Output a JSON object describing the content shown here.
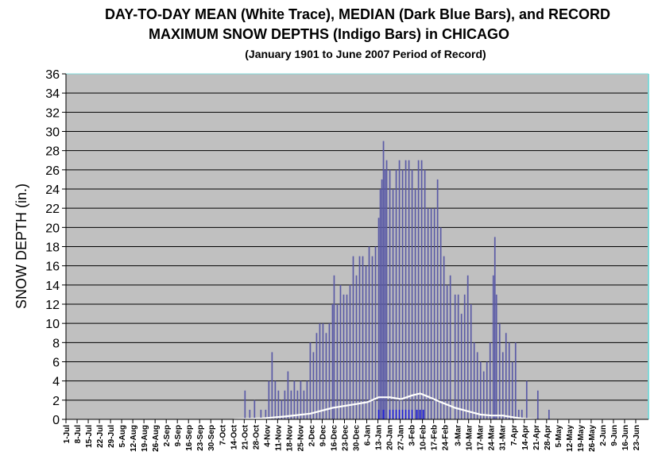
{
  "chart_data": {
    "type": "bar",
    "title_line1": "DAY-TO-DAY MEAN (White Trace), MEDIAN (Dark Blue Bars), and RECORD",
    "title_line2": "MAXIMUM SNOW DEPTHS (Indigo Bars)  in CHICAGO",
    "subtitle": "(January 1901 to June 2007 Period of Record)",
    "ylabel": "SNOW DEPTH (in.)",
    "xlabel": "",
    "ylim": [
      0,
      36
    ],
    "yticks": [
      0,
      2,
      4,
      6,
      8,
      10,
      12,
      14,
      16,
      18,
      20,
      22,
      24,
      26,
      28,
      30,
      32,
      34,
      36
    ],
    "x_tick_labels": [
      "1-Jul",
      "8-Jul",
      "15-Jul",
      "22-Jul",
      "29-Jul",
      "5-Aug",
      "12-Aug",
      "19-Aug",
      "26-Aug",
      "2-Sep",
      "9-Sep",
      "16-Sep",
      "23-Sep",
      "30-Sep",
      "7-Oct",
      "14-Oct",
      "21-Oct",
      "28-Oct",
      "4-Nov",
      "11-Nov",
      "18-Nov",
      "25-Nov",
      "2-Dec",
      "9-Dec",
      "16-Dec",
      "23-Dec",
      "30-Dec",
      "6-Jan",
      "13-Jan",
      "20-Jan",
      "27-Jan",
      "3-Feb",
      "10-Feb",
      "17-Feb",
      "24-Feb",
      "3-Mar",
      "10-Mar",
      "17-Mar",
      "24-Mar",
      "31-Mar",
      "7-Apr",
      "14-Apr",
      "21-Apr",
      "28-Apr",
      "5-May",
      "12-May",
      "19-May",
      "26-May",
      "2-Jun",
      "9-Jun",
      "16-Jun",
      "23-Jun"
    ],
    "x_day_count": 366,
    "grid": true,
    "colors": {
      "plot_background": "#c0c0c0",
      "record_bars": "#5a5aa6",
      "median_bars": "#1c1cd8",
      "mean_trace": "#ffffff",
      "border": "#7fd8d8"
    },
    "series": [
      {
        "name": "RECORD MAXIMUM",
        "kind": "bar",
        "points": [
          [
            "21-Oct",
            3
          ],
          [
            "24-Oct",
            1
          ],
          [
            "27-Oct",
            2
          ],
          [
            "31-Oct",
            1
          ],
          [
            "3-Nov",
            1
          ],
          [
            "5-Nov",
            4
          ],
          [
            "7-Nov",
            7
          ],
          [
            "9-Nov",
            4
          ],
          [
            "11-Nov",
            3
          ],
          [
            "13-Nov",
            2
          ],
          [
            "15-Nov",
            3
          ],
          [
            "17-Nov",
            5
          ],
          [
            "19-Nov",
            3
          ],
          [
            "21-Nov",
            4
          ],
          [
            "23-Nov",
            3
          ],
          [
            "25-Nov",
            4
          ],
          [
            "27-Nov",
            3
          ],
          [
            "29-Nov",
            4
          ],
          [
            "1-Dec",
            8
          ],
          [
            "3-Dec",
            7
          ],
          [
            "5-Dec",
            9
          ],
          [
            "7-Dec",
            10
          ],
          [
            "9-Dec",
            10
          ],
          [
            "11-Dec",
            9
          ],
          [
            "13-Dec",
            10
          ],
          [
            "15-Dec",
            12
          ],
          [
            "16-Dec",
            15
          ],
          [
            "18-Dec",
            12
          ],
          [
            "20-Dec",
            14
          ],
          [
            "22-Dec",
            13
          ],
          [
            "24-Dec",
            13
          ],
          [
            "26-Dec",
            14
          ],
          [
            "28-Dec",
            17
          ],
          [
            "30-Dec",
            15
          ],
          [
            "1-Jan",
            17
          ],
          [
            "3-Jan",
            17
          ],
          [
            "5-Jan",
            16
          ],
          [
            "7-Jan",
            18
          ],
          [
            "9-Jan",
            17
          ],
          [
            "11-Jan",
            18
          ],
          [
            "13-Jan",
            21
          ],
          [
            "14-Jan",
            24
          ],
          [
            "15-Jan",
            25
          ],
          [
            "16-Jan",
            29
          ],
          [
            "17-Jan",
            26
          ],
          [
            "18-Jan",
            27
          ],
          [
            "20-Jan",
            26
          ],
          [
            "22-Jan",
            24
          ],
          [
            "24-Jan",
            26
          ],
          [
            "26-Jan",
            27
          ],
          [
            "28-Jan",
            26
          ],
          [
            "30-Jan",
            27
          ],
          [
            "1-Feb",
            27
          ],
          [
            "3-Feb",
            26
          ],
          [
            "5-Feb",
            24
          ],
          [
            "7-Feb",
            27
          ],
          [
            "9-Feb",
            27
          ],
          [
            "11-Feb",
            26
          ],
          [
            "13-Feb",
            22
          ],
          [
            "15-Feb",
            22
          ],
          [
            "17-Feb",
            22
          ],
          [
            "19-Feb",
            25
          ],
          [
            "21-Feb",
            20
          ],
          [
            "23-Feb",
            17
          ],
          [
            "25-Feb",
            14
          ],
          [
            "27-Feb",
            15
          ],
          [
            "1-Mar",
            13
          ],
          [
            "3-Mar",
            13
          ],
          [
            "5-Mar",
            11
          ],
          [
            "7-Mar",
            13
          ],
          [
            "9-Mar",
            15
          ],
          [
            "11-Mar",
            12
          ],
          [
            "13-Mar",
            8
          ],
          [
            "15-Mar",
            7
          ],
          [
            "17-Mar",
            6
          ],
          [
            "19-Mar",
            5
          ],
          [
            "21-Mar",
            6
          ],
          [
            "23-Mar",
            8
          ],
          [
            "25-Mar",
            15
          ],
          [
            "26-Mar",
            19
          ],
          [
            "27-Mar",
            13
          ],
          [
            "29-Mar",
            10
          ],
          [
            "31-Mar",
            7
          ],
          [
            "2-Apr",
            9
          ],
          [
            "4-Apr",
            8
          ],
          [
            "6-Apr",
            6
          ],
          [
            "8-Apr",
            8
          ],
          [
            "10-Apr",
            1
          ],
          [
            "12-Apr",
            1
          ],
          [
            "15-Apr",
            4
          ],
          [
            "22-Apr",
            3
          ],
          [
            "29-Apr",
            1
          ]
        ]
      },
      {
        "name": "MEDIAN",
        "kind": "bar",
        "points": [
          [
            "13-Jan",
            1
          ],
          [
            "16-Jan",
            1
          ],
          [
            "20-Jan",
            1
          ],
          [
            "22-Jan",
            1
          ],
          [
            "24-Jan",
            1
          ],
          [
            "26-Jan",
            1
          ],
          [
            "28-Jan",
            1
          ],
          [
            "30-Jan",
            1
          ],
          [
            "1-Feb",
            1
          ],
          [
            "3-Feb",
            1
          ],
          [
            "6-Feb",
            1
          ],
          [
            "8-Feb",
            1
          ],
          [
            "10-Feb",
            1
          ]
        ]
      },
      {
        "name": "MEAN",
        "kind": "line",
        "points": [
          [
            "14-Oct",
            0
          ],
          [
            "1-Nov",
            0.1
          ],
          [
            "15-Nov",
            0.3
          ],
          [
            "1-Dec",
            0.6
          ],
          [
            "15-Dec",
            1.2
          ],
          [
            "30-Dec",
            1.6
          ],
          [
            "6-Jan",
            1.8
          ],
          [
            "13-Jan",
            2.3
          ],
          [
            "20-Jan",
            2.3
          ],
          [
            "27-Jan",
            2.1
          ],
          [
            "3-Feb",
            2.5
          ],
          [
            "8-Feb",
            2.7
          ],
          [
            "14-Feb",
            2.3
          ],
          [
            "21-Feb",
            1.8
          ],
          [
            "1-Mar",
            1.2
          ],
          [
            "10-Mar",
            0.8
          ],
          [
            "17-Mar",
            0.5
          ],
          [
            "24-Mar",
            0.4
          ],
          [
            "31-Mar",
            0.4
          ],
          [
            "7-Apr",
            0.2
          ],
          [
            "14-Apr",
            0.05
          ],
          [
            "21-Apr",
            0
          ]
        ]
      }
    ]
  }
}
